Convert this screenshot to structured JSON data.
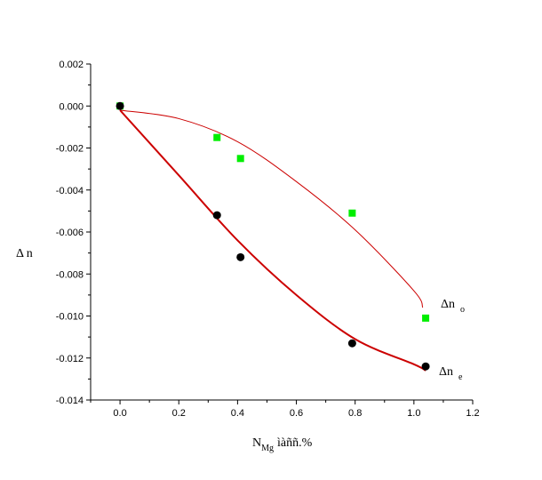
{
  "chart_data": {
    "type": "scatter",
    "title": "",
    "xlabel": {
      "main": "N",
      "sub": "Mg",
      "rest": "ìàññ.%"
    },
    "ylabel": "Δ n",
    "xlim": [
      -0.1,
      1.2
    ],
    "ylim": [
      -0.014,
      0.002
    ],
    "x_ticks": [
      "0.0",
      "0.2",
      "0.4",
      "0.6",
      "0.8",
      "1.0",
      "1.2"
    ],
    "y_ticks": [
      "0.002",
      "0.000",
      "-0.002",
      "-0.004",
      "-0.006",
      "-0.008",
      "-0.010",
      "-0.012",
      "-0.014"
    ],
    "series": [
      {
        "name": "Δn o",
        "marker": "square",
        "color": "#00ee00",
        "fit_color": "#cc0000",
        "x": [
          0.0,
          0.33,
          0.41,
          0.79,
          1.04
        ],
        "y": [
          0.0,
          -0.0015,
          -0.0025,
          -0.0051,
          -0.0101
        ],
        "fit": {
          "x": [
            0.0,
            0.2,
            0.4,
            0.6,
            0.8,
            1.0,
            1.03
          ],
          "y": [
            -0.0002,
            -0.0006,
            -0.0017,
            -0.0036,
            -0.0059,
            -0.0088,
            -0.0096
          ]
        }
      },
      {
        "name": "Δn e",
        "marker": "circle",
        "color": "#000000",
        "fit_color": "#cc0000",
        "x": [
          0.0,
          0.33,
          0.41,
          0.79,
          1.04
        ],
        "y": [
          0.0,
          -0.0052,
          -0.0072,
          -0.0113,
          -0.0124
        ],
        "fit": {
          "x": [
            0.0,
            0.2,
            0.4,
            0.6,
            0.8,
            1.0,
            1.04
          ],
          "y": [
            -0.0002,
            -0.0033,
            -0.0064,
            -0.009,
            -0.0111,
            -0.0123,
            -0.0126
          ]
        }
      }
    ],
    "annotations": [
      {
        "base": "Δn",
        "sub": "o"
      },
      {
        "base": "Δn",
        "sub": "e"
      }
    ],
    "grid": false,
    "legend": "none"
  }
}
